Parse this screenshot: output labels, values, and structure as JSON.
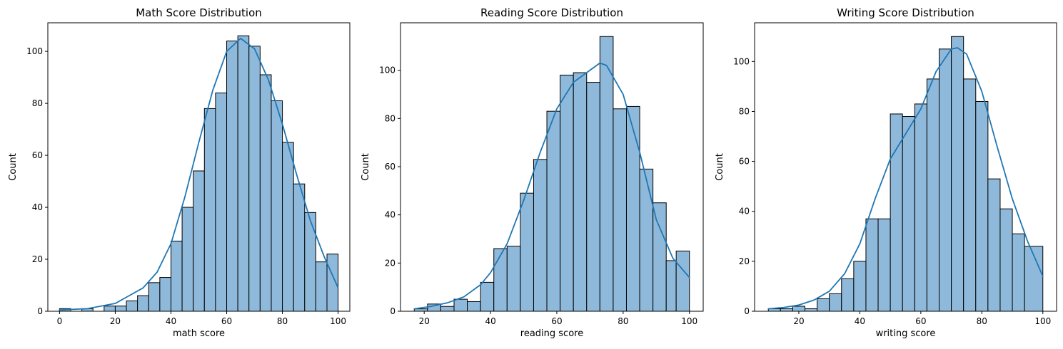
{
  "colors": {
    "bar_fill": "#8fb9da",
    "bar_edge": "#000000",
    "kde_line": "#1f77b4"
  },
  "chart_data": [
    {
      "type": "bar",
      "subtype": "histogram",
      "title": "Math Score Distribution",
      "xlabel": "math score",
      "ylabel": "Count",
      "xlim": [
        -4.2,
        104.2
      ],
      "ylim": [
        0,
        111
      ],
      "xticks": [
        0,
        20,
        40,
        60,
        80,
        100
      ],
      "yticks": [
        0,
        20,
        40,
        60,
        80,
        100
      ],
      "bin_edges": [
        0,
        4,
        8,
        12,
        16,
        20,
        24,
        28,
        32,
        36,
        40,
        44,
        48,
        52,
        56,
        60,
        64,
        68,
        72,
        76,
        80,
        84,
        88,
        92,
        96,
        100
      ],
      "counts": [
        1,
        0,
        1,
        0,
        2,
        2,
        4,
        6,
        11,
        13,
        27,
        40,
        54,
        78,
        84,
        104,
        106,
        102,
        91,
        81,
        65,
        49,
        38,
        19,
        22
      ],
      "kde": {
        "x": [
          0,
          10,
          20,
          25,
          30,
          35,
          40,
          45,
          50,
          55,
          60,
          65,
          70,
          75,
          80,
          85,
          90,
          95,
          100
        ],
        "y": [
          0.5,
          1,
          3,
          6,
          9,
          15,
          26,
          44,
          65,
          85,
          100,
          105,
          101,
          89,
          72,
          53,
          35,
          21,
          9
        ]
      },
      "grid": false,
      "legend": "none"
    },
    {
      "type": "bar",
      "subtype": "histogram",
      "title": "Reading Score Distribution",
      "xlabel": "reading score",
      "ylabel": "Count",
      "xlim": [
        12.85,
        104.15
      ],
      "ylim": [
        0,
        119.7
      ],
      "xticks": [
        20,
        40,
        60,
        80,
        100
      ],
      "yticks": [
        0,
        20,
        40,
        60,
        80,
        100
      ],
      "bin_edges": [
        17,
        21,
        25,
        29,
        33,
        37,
        41,
        45,
        49,
        53,
        57,
        61,
        65,
        69,
        73,
        77,
        81,
        85,
        89,
        93,
        96,
        100
      ],
      "counts": [
        1,
        3,
        2,
        5,
        4,
        12,
        26,
        27,
        49,
        63,
        83,
        98,
        99,
        95,
        114,
        84,
        85,
        59,
        45,
        21,
        25
      ],
      "kde": {
        "x": [
          17,
          22,
          27,
          32,
          37,
          40,
          45,
          50,
          55,
          60,
          65,
          70,
          73,
          75,
          80,
          85,
          90,
          95,
          100
        ],
        "y": [
          1,
          2,
          3.5,
          6,
          11,
          16,
          28,
          46,
          66,
          84,
          95,
          100,
          103,
          102,
          90,
          66,
          38,
          22,
          14
        ]
      },
      "grid": false,
      "legend": "none"
    },
    {
      "type": "bar",
      "subtype": "histogram",
      "title": "Writing Score Distribution",
      "xlabel": "writing score",
      "ylabel": "Count",
      "xlim": [
        5.5,
        104.5
      ],
      "ylim": [
        0,
        115.5
      ],
      "xticks": [
        20,
        40,
        60,
        80,
        100
      ],
      "yticks": [
        0,
        20,
        40,
        60,
        80,
        100
      ],
      "bin_edges": [
        10,
        14,
        18,
        22,
        26,
        30,
        34,
        38,
        42,
        46,
        50,
        54,
        58,
        62,
        66,
        70,
        74,
        78,
        82,
        86,
        90,
        94,
        100
      ],
      "counts": [
        1,
        1,
        2,
        1,
        5,
        7,
        13,
        20,
        37,
        37,
        79,
        78,
        83,
        93,
        105,
        110,
        93,
        84,
        53,
        41,
        31,
        26
      ],
      "kde": {
        "x": [
          10,
          15,
          20,
          25,
          30,
          35,
          40,
          45,
          50,
          55,
          60,
          65,
          70,
          72,
          75,
          80,
          85,
          90,
          95,
          100
        ],
        "y": [
          1,
          1.5,
          2.5,
          4.5,
          8,
          15,
          27,
          45,
          61,
          71,
          81,
          96,
          105,
          105.5,
          103,
          88,
          66,
          45,
          28,
          14
        ]
      },
      "grid": false,
      "legend": "none"
    }
  ]
}
